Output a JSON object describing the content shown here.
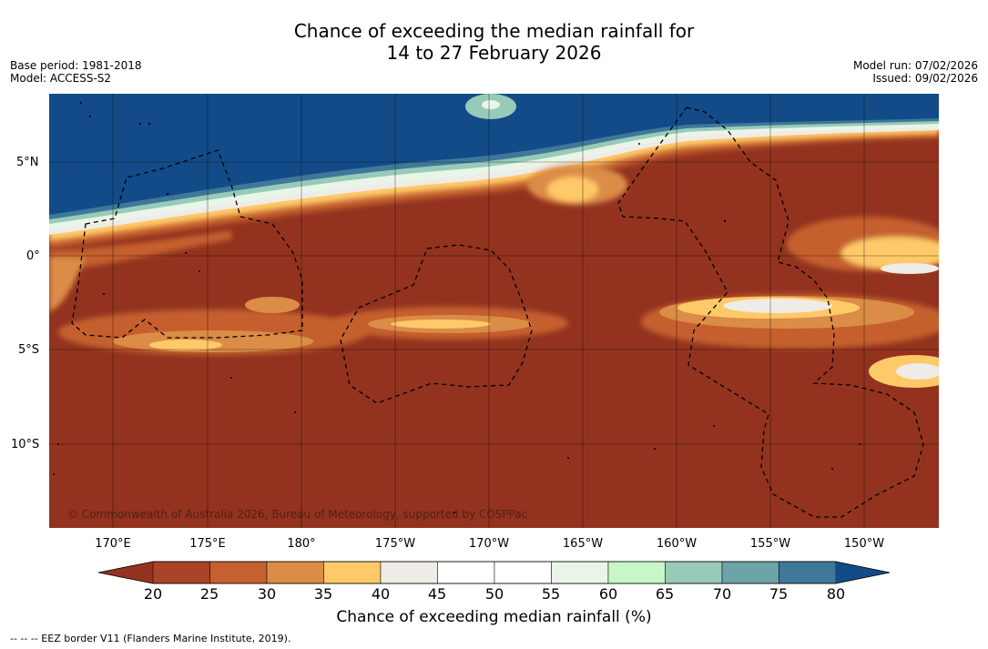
{
  "title": {
    "line1": "Chance of exceeding the median rainfall for",
    "line2": "14 to 27 February 2026"
  },
  "meta": {
    "base_period": "Base period: 1981-2018",
    "model": "Model: ACCESS-S2",
    "model_run": "Model run: 07/02/2026",
    "issued": "Issued: 09/02/2026"
  },
  "map": {
    "copyright": "© Commonwealth of Australia 2026, Bureau of Meteorology, supported by COSPPac",
    "lat_labels": [
      "5°N",
      "0°",
      "5°S",
      "10°S"
    ],
    "lon_labels": [
      "170°E",
      "175°E",
      "180°",
      "175°W",
      "170°W",
      "165°W",
      "160°W",
      "155°W",
      "150°W"
    ]
  },
  "colorbar": {
    "label": "Chance of exceeding median rainfall (%)",
    "ticks": [
      "20",
      "25",
      "30",
      "35",
      "40",
      "45",
      "50",
      "55",
      "60",
      "65",
      "70",
      "75",
      "80"
    ],
    "under_color": "#93331f",
    "over_color": "#124b88",
    "colors": [
      "#aa4426",
      "#c5602f",
      "#db8c47",
      "#fec968",
      "#efebe6",
      "#ffffff",
      "#ffffff",
      "#e9f5e7",
      "#c7f7c7",
      "#98cab8",
      "#6ba3a6",
      "#3f7898"
    ]
  },
  "legend_note": "--  --  -- EEZ border V11 (Flanders Marine Institute, 2019)."
}
